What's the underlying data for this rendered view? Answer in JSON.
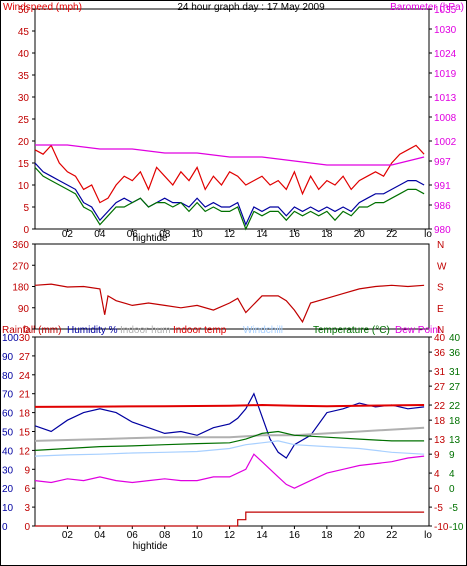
{
  "header": {
    "title": "24 hour graph day : 17 May 2009",
    "left_label": "Windspeed (mph)",
    "right_label": "Barometer (hPa)"
  },
  "time_axis": {
    "ticks": [
      "02",
      "04",
      "06",
      "08",
      "10",
      "12",
      "14",
      "16",
      "18",
      "20",
      "22"
    ],
    "end_label": "lo",
    "marker_label": "hightide"
  },
  "colors": {
    "wind": "#e00000",
    "gust": "#0000a0",
    "wind_avg": "#007000",
    "baro": "#e000e0",
    "dir": "#c00000",
    "humidity": "#0000a0",
    "indoor_hum": "#b0b0b0",
    "indoor_temp": "#e00000",
    "windchill": "#a8d0ff",
    "temperature": "#007000",
    "dewpoint": "#e000e0",
    "rainfall": "#c00000"
  },
  "chart_data": [
    {
      "type": "line",
      "title": "24 hour graph day : 17 May 2009",
      "x_range": [
        0,
        24.3
      ],
      "left_axis": {
        "label": "Windspeed (mph)",
        "ticks": [
          0,
          5,
          10,
          15,
          20,
          25,
          30,
          35,
          40,
          45,
          50
        ],
        "range": [
          0,
          50
        ]
      },
      "right_axis": {
        "label": "Barometer (hPa)",
        "ticks": [
          980,
          986,
          991,
          997,
          1002,
          1008,
          1013,
          1019,
          1024,
          1030,
          1035
        ],
        "range": [
          980,
          1035
        ]
      },
      "series": [
        {
          "key": "wind",
          "axis": "left",
          "x": [
            0,
            0.5,
            1,
            1.5,
            2,
            2.5,
            3,
            3.5,
            4,
            4.5,
            5,
            5.5,
            6,
            6.5,
            7,
            7.5,
            8,
            8.5,
            9,
            9.5,
            10,
            10.5,
            11,
            11.5,
            12,
            12.5,
            13,
            13.5,
            14,
            14.5,
            15,
            15.5,
            16,
            16.5,
            17,
            17.5,
            18,
            18.5,
            19,
            19.5,
            20,
            20.5,
            21,
            21.5,
            22,
            22.5,
            23,
            23.5,
            24
          ],
          "values": [
            18,
            17,
            19,
            15,
            13,
            12,
            9,
            10,
            6,
            7,
            10,
            12,
            11,
            13,
            9,
            14,
            12,
            10,
            13,
            11,
            14,
            9,
            12,
            10,
            13,
            12,
            10,
            11,
            12,
            10,
            11,
            9,
            13,
            8,
            12,
            9,
            11,
            10,
            12,
            9,
            11,
            12,
            13,
            12,
            15,
            17,
            18,
            19,
            17
          ]
        },
        {
          "key": "gust",
          "axis": "left",
          "x": [
            0,
            0.5,
            1,
            1.5,
            2,
            2.5,
            3,
            3.5,
            4,
            4.5,
            5,
            5.5,
            6,
            6.5,
            7,
            7.5,
            8,
            8.5,
            9,
            9.5,
            10,
            10.5,
            11,
            11.5,
            12,
            12.5,
            13,
            13.5,
            14,
            14.5,
            15,
            15.5,
            16,
            16.5,
            17,
            17.5,
            18,
            18.5,
            19,
            19.5,
            20,
            20.5,
            21,
            21.5,
            22,
            22.5,
            23,
            23.5,
            24
          ],
          "values": [
            15,
            13,
            12,
            11,
            10,
            9,
            6,
            5,
            2,
            4,
            6,
            7,
            6,
            7,
            5,
            6,
            7,
            6,
            6,
            5,
            7,
            5,
            6,
            5,
            5,
            6,
            1,
            5,
            4,
            5,
            5,
            3,
            5,
            4,
            5,
            4,
            5,
            4,
            5,
            4,
            6,
            7,
            8,
            8,
            9,
            10,
            11,
            11,
            10
          ]
        },
        {
          "key": "wind_avg",
          "axis": "left",
          "x": [
            0,
            0.5,
            1,
            1.5,
            2,
            2.5,
            3,
            3.5,
            4,
            4.5,
            5,
            5.5,
            6,
            6.5,
            7,
            7.5,
            8,
            8.5,
            9,
            9.5,
            10,
            10.5,
            11,
            11.5,
            12,
            12.5,
            13,
            13.5,
            14,
            14.5,
            15,
            15.5,
            16,
            16.5,
            17,
            17.5,
            18,
            18.5,
            19,
            19.5,
            20,
            20.5,
            21,
            21.5,
            22,
            22.5,
            23,
            23.5,
            24
          ],
          "values": [
            14,
            12,
            11,
            10,
            9,
            8,
            5,
            4,
            1,
            3,
            5,
            5,
            6,
            7,
            5,
            6,
            6,
            5,
            6,
            4,
            6,
            4,
            5,
            4,
            4,
            5,
            0,
            4,
            3,
            4,
            4,
            2,
            4,
            3,
            4,
            3,
            4,
            2,
            4,
            3,
            5,
            5,
            6,
            6,
            7,
            8,
            9,
            9,
            8
          ]
        },
        {
          "key": "baro",
          "axis": "right",
          "x": [
            0,
            2,
            4,
            6,
            8,
            10,
            12,
            13,
            14,
            16,
            18,
            20,
            22,
            23,
            24
          ],
          "values": [
            1001,
            1001,
            1000,
            1000,
            999,
            999,
            998,
            998,
            998,
            997,
            996,
            996,
            996,
            997,
            998
          ]
        }
      ]
    },
    {
      "type": "line",
      "title": "",
      "x_range": [
        0,
        24.3
      ],
      "left_axis": {
        "ticks": [
          0,
          90,
          180,
          270,
          360
        ],
        "range": [
          0,
          360
        ]
      },
      "right_axis": {
        "ticks": [
          "N",
          "W",
          "S",
          "E",
          "N"
        ]
      },
      "series": [
        {
          "key": "dir",
          "axis": "left",
          "x": [
            0,
            1,
            2,
            3,
            4,
            4.3,
            4.5,
            5,
            6,
            7,
            8,
            9,
            10,
            11,
            12,
            12.5,
            13,
            14,
            15,
            15.5,
            16,
            16.5,
            17,
            18,
            19,
            20,
            21,
            22,
            23,
            24
          ],
          "values": [
            185,
            190,
            178,
            180,
            170,
            60,
            140,
            120,
            100,
            110,
            100,
            90,
            100,
            80,
            110,
            130,
            70,
            140,
            140,
            120,
            80,
            30,
            110,
            130,
            150,
            170,
            180,
            185,
            180,
            185
          ]
        }
      ]
    },
    {
      "type": "line",
      "title": "",
      "x_range": [
        0,
        24.3
      ],
      "legend": [
        "Rainfall (mm)",
        "Humidity %",
        "Indoor hum",
        "Indoor temp",
        "Windchill",
        "Temperature (°C)",
        "Dew Point"
      ],
      "axis_rain": {
        "label": "Rainfall (mm)",
        "ticks": [
          0,
          3,
          6,
          9,
          12,
          15,
          18,
          21,
          24,
          27,
          30
        ],
        "range": [
          0,
          30
        ]
      },
      "axis_hum": {
        "label": "Humidity %",
        "ticks": [
          0,
          10,
          20,
          30,
          40,
          50,
          60,
          70,
          80,
          90,
          100
        ],
        "range": [
          0,
          100
        ]
      },
      "axis_temp": {
        "label": "Temperature (°C)",
        "ticks": [
          -10,
          -5,
          0,
          4,
          9,
          13,
          18,
          22,
          27,
          31,
          36,
          40
        ],
        "range": [
          -10,
          40
        ]
      },
      "series": [
        {
          "key": "humidity",
          "axis": "hum",
          "x": [
            0,
            1,
            2,
            3,
            4,
            5,
            6,
            7,
            8,
            9,
            10,
            11,
            12,
            12.5,
            13,
            13.5,
            14,
            14.5,
            15,
            15.5,
            16,
            17,
            18,
            19,
            20,
            21,
            22,
            23,
            24
          ],
          "values": [
            53,
            50,
            56,
            60,
            62,
            60,
            55,
            52,
            49,
            50,
            48,
            52,
            54,
            57,
            62,
            70,
            58,
            46,
            39,
            36,
            43,
            48,
            60,
            62,
            65,
            63,
            64,
            62,
            63
          ]
        },
        {
          "key": "indoor_hum",
          "axis": "hum",
          "x": [
            0,
            4,
            8,
            12,
            14,
            16,
            18,
            20,
            24
          ],
          "values": [
            45,
            46,
            47,
            47,
            48,
            48,
            49,
            50,
            52
          ]
        },
        {
          "key": "indoor_temp",
          "axis": "temp",
          "x": [
            0,
            4,
            8,
            12,
            14,
            16,
            18,
            20,
            22,
            24
          ],
          "values": [
            21.5,
            21.6,
            21.7,
            21.8,
            22,
            21.8,
            21.7,
            21.8,
            21.9,
            22
          ]
        },
        {
          "key": "windchill",
          "axis": "temp",
          "x": [
            0,
            2,
            4,
            6,
            8,
            10,
            12,
            13,
            14,
            15,
            16,
            18,
            20,
            22,
            24
          ],
          "values": [
            8.5,
            8.8,
            9,
            9.3,
            9.5,
            9.7,
            10.5,
            11.5,
            12,
            12.5,
            11.5,
            11,
            10.5,
            9.5,
            9
          ]
        },
        {
          "key": "temperature",
          "axis": "temp",
          "x": [
            0,
            2,
            4,
            6,
            8,
            10,
            12,
            13,
            14,
            15,
            16,
            18,
            20,
            22,
            24
          ],
          "values": [
            10,
            10.5,
            11,
            11.2,
            11.5,
            11.8,
            12,
            13,
            14.5,
            15,
            14,
            13.5,
            13,
            12.5,
            12.5
          ]
        },
        {
          "key": "dewpoint",
          "axis": "temp",
          "x": [
            0,
            1,
            2,
            3,
            4,
            5,
            6,
            7,
            8,
            9,
            10,
            11,
            12,
            13,
            13.5,
            14,
            14.5,
            15,
            15.5,
            16,
            17,
            18,
            19,
            20,
            21,
            22,
            23,
            24
          ],
          "values": [
            2,
            1.5,
            2.5,
            2,
            3,
            2,
            1.5,
            2,
            2.5,
            2,
            2,
            3,
            3,
            5,
            9,
            7,
            5,
            3,
            1,
            0,
            2,
            4,
            5,
            6,
            6.5,
            7,
            8,
            8.5
          ]
        },
        {
          "key": "rainfall",
          "axis": "rain",
          "x": [
            0,
            12,
            12.5,
            13,
            24
          ],
          "values": [
            0,
            0,
            1,
            2.2,
            2.2
          ]
        }
      ]
    }
  ]
}
